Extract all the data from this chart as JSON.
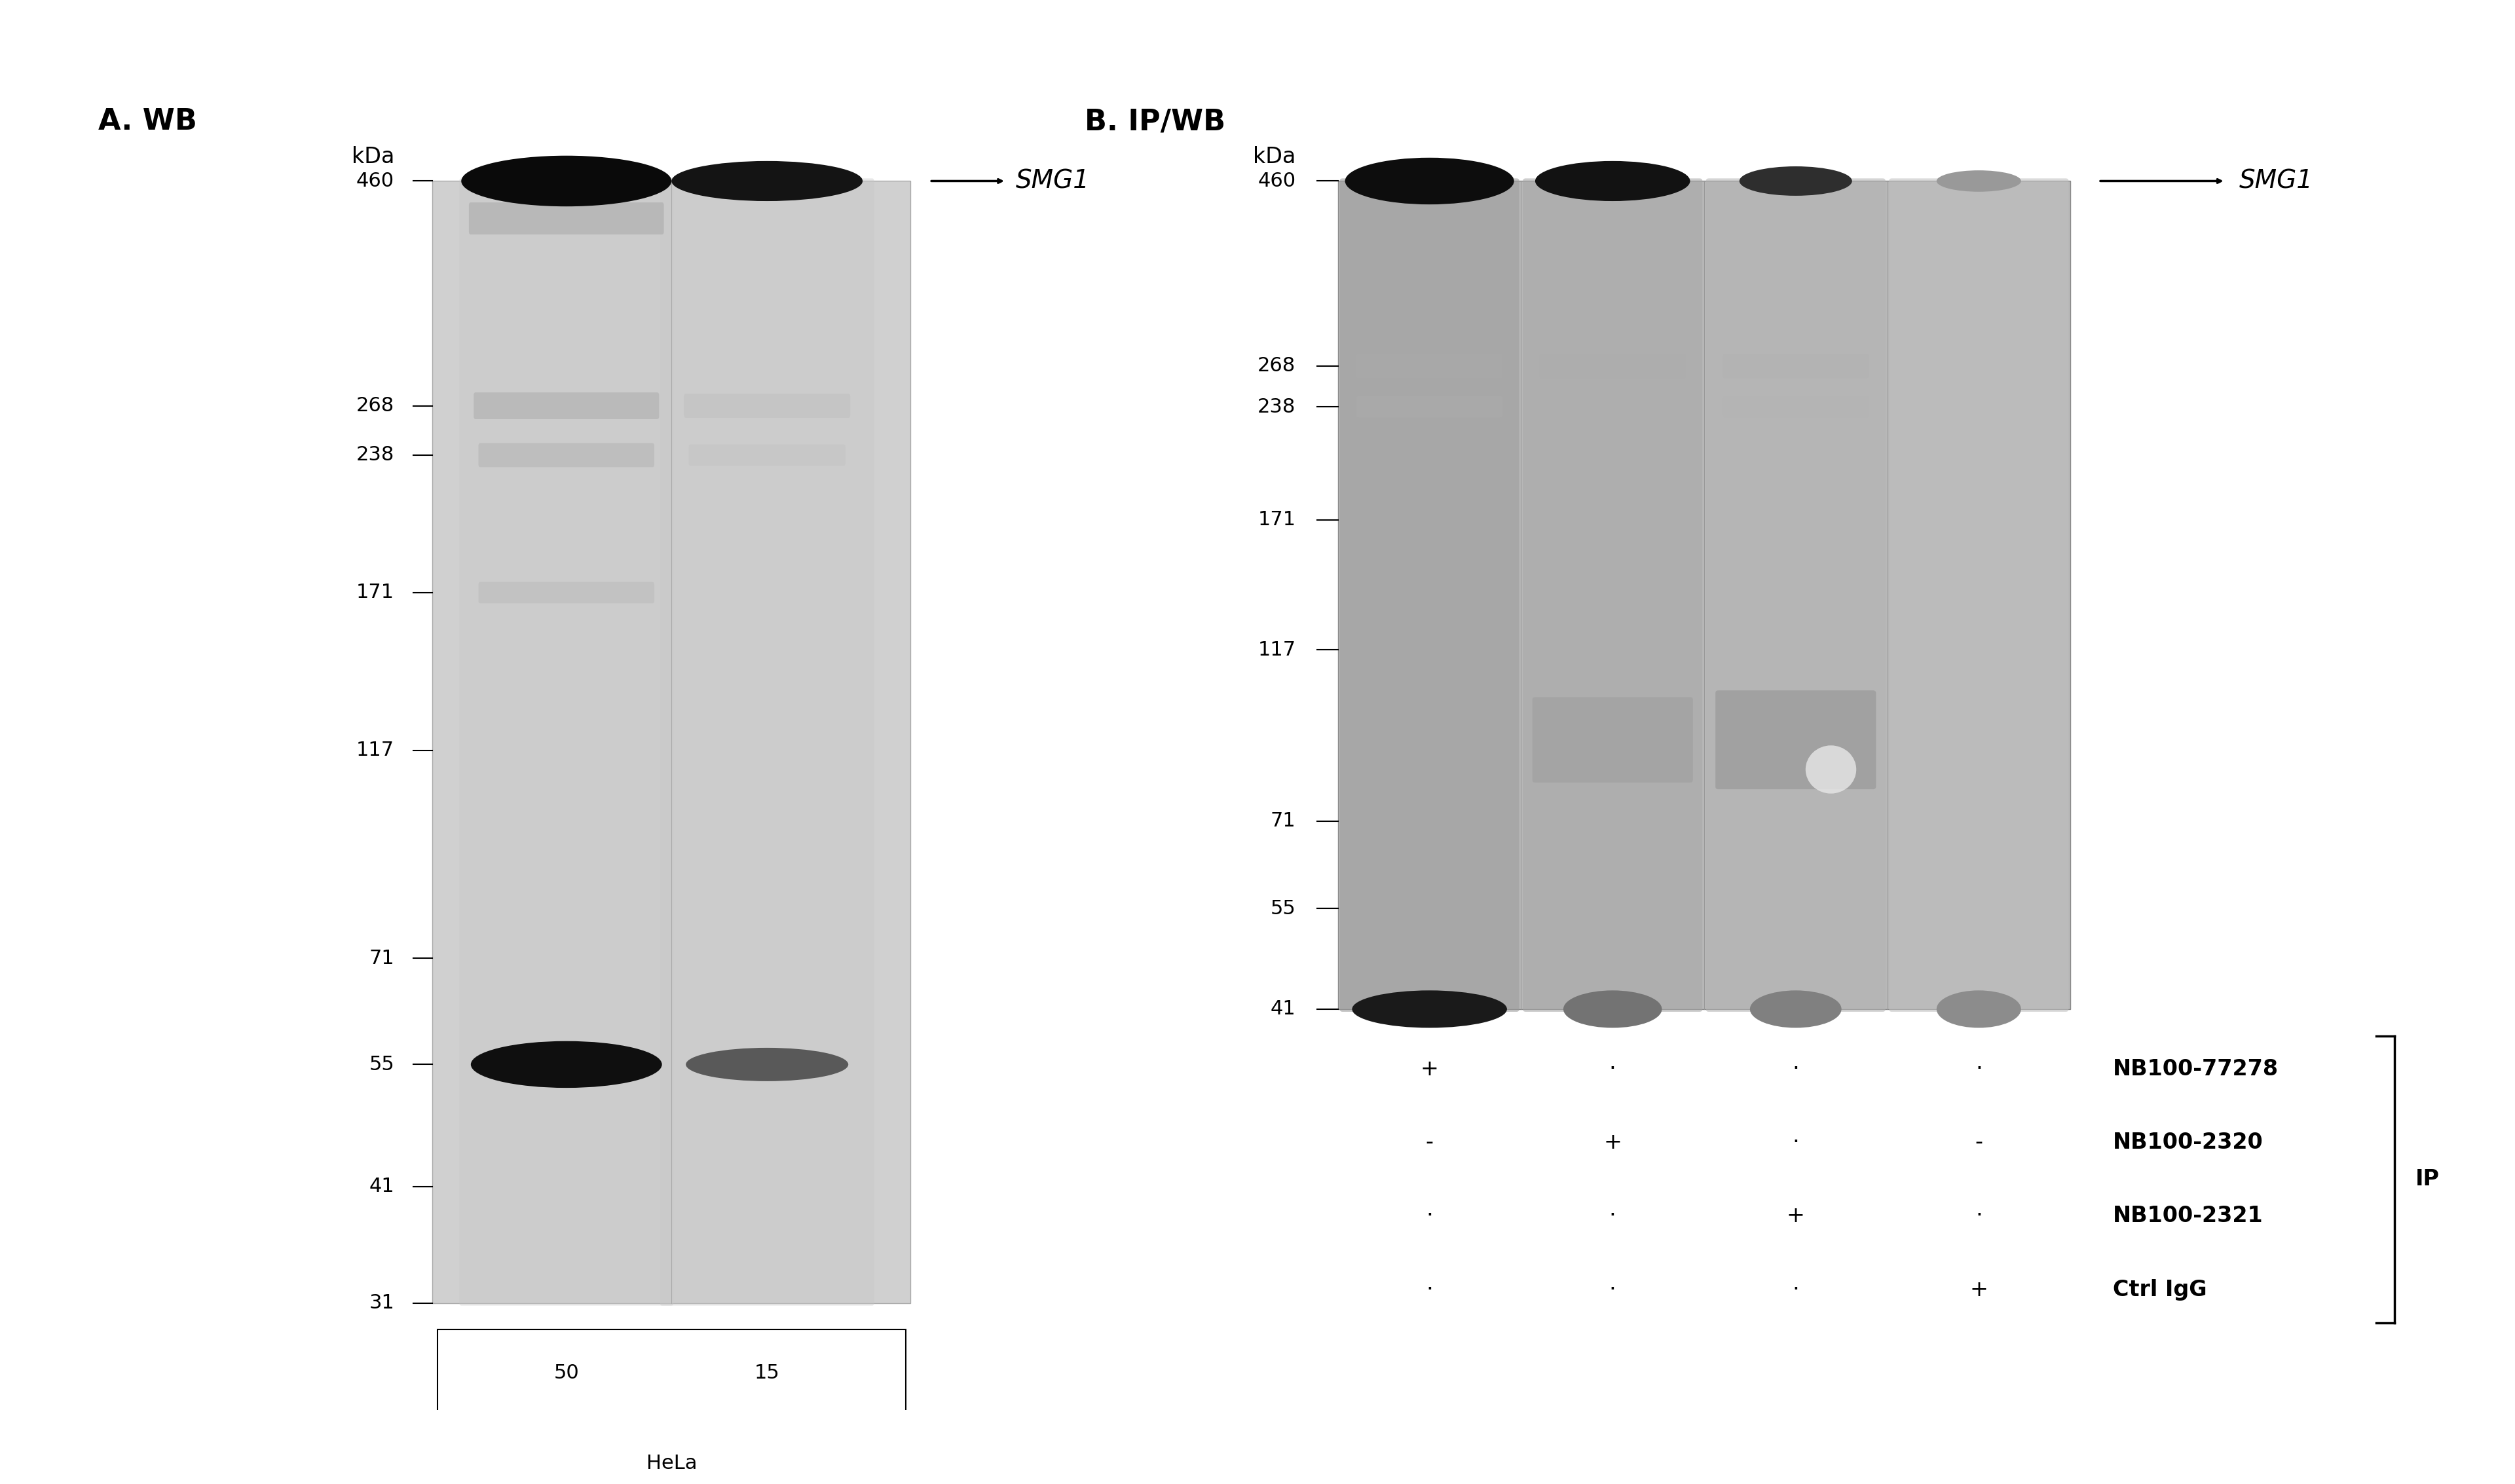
{
  "title_a": "A. WB",
  "title_b": "B. IP/WB",
  "kda_label": "kDa",
  "mw_markers_a": [
    460,
    268,
    238,
    171,
    117,
    71,
    55,
    41,
    31
  ],
  "mw_markers_b": [
    460,
    268,
    238,
    171,
    117,
    71,
    55,
    41
  ],
  "smg1_label": "SMG1",
  "lane_labels_a": [
    "50",
    "15"
  ],
  "sample_label_a": "HeLa",
  "legend_entries": [
    "NB100-77278",
    "NB100-2320",
    "NB100-2321",
    "Ctrl IgG"
  ],
  "ip_label": "IP",
  "dot_matrix_a": [
    [
      "+",
      "·",
      "·",
      "·"
    ],
    [
      "-",
      "+",
      "·",
      "-"
    ],
    [
      "·",
      "·",
      "+",
      "·"
    ],
    [
      "·",
      "·",
      "·",
      "+"
    ]
  ],
  "font_size_title": 32,
  "font_size_kda": 24,
  "font_size_marker": 22,
  "font_size_legend": 24,
  "font_size_lane": 22,
  "font_size_sample": 22,
  "font_size_ip": 24,
  "font_size_smg1": 28,
  "gel_bg_a": "#c8c8c8",
  "gel_bg_b": "#b8b8b8",
  "white": "#ffffff",
  "black": "#000000"
}
